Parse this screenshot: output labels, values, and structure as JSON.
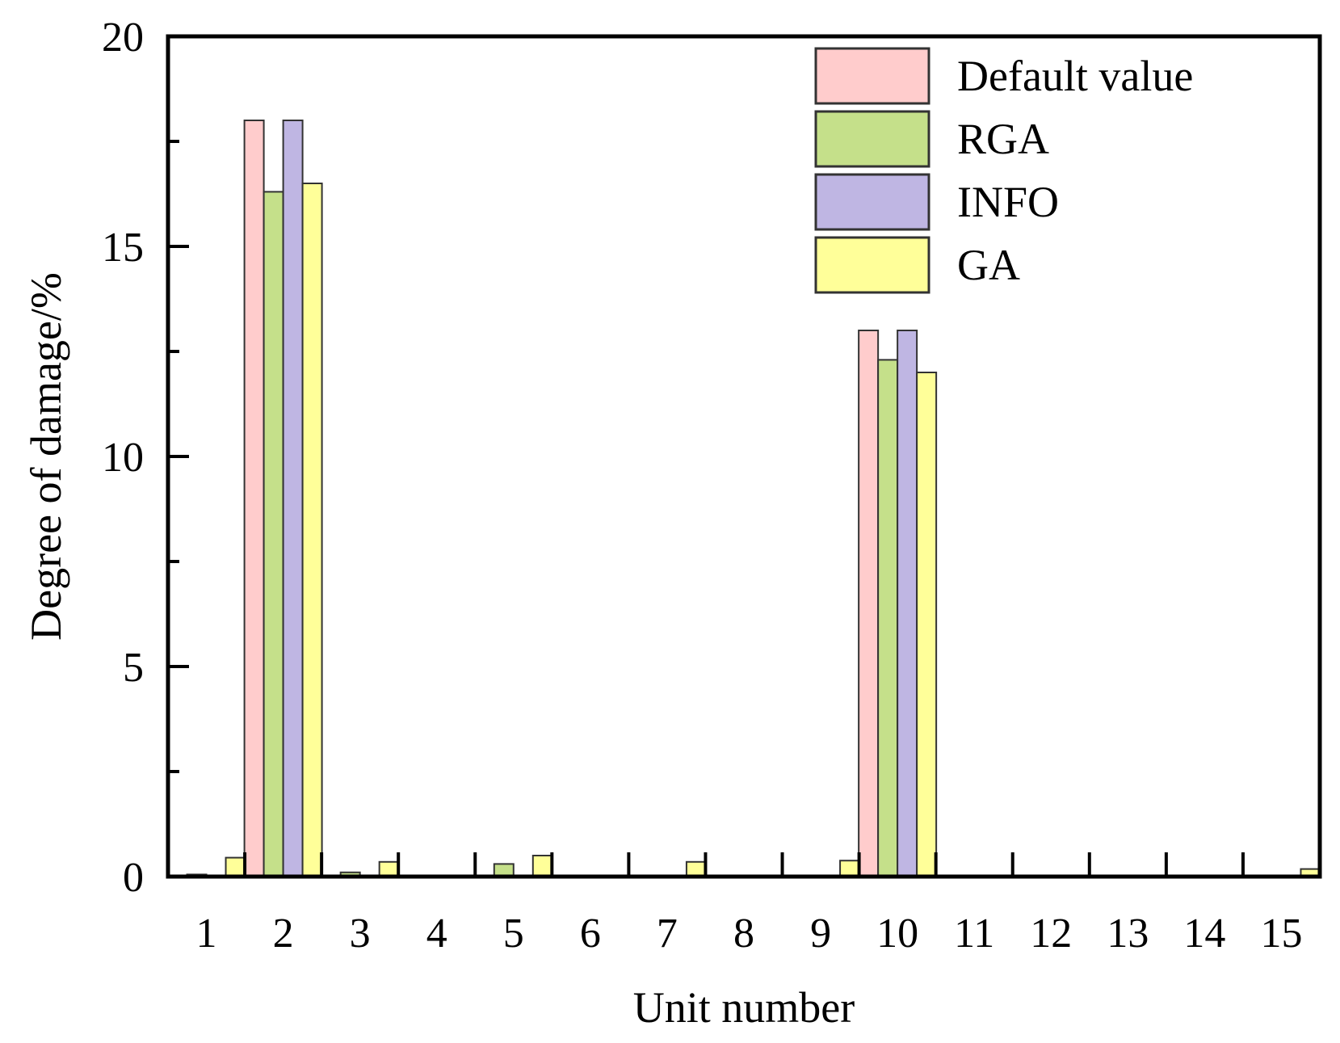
{
  "chart_data": {
    "type": "bar",
    "xlabel": "Unit number",
    "ylabel": "Degree of damage/%",
    "ylim": [
      0,
      20
    ],
    "yticks": [
      0,
      5,
      10,
      15,
      20
    ],
    "categories": [
      "1",
      "2",
      "3",
      "4",
      "5",
      "6",
      "7",
      "8",
      "9",
      "10",
      "11",
      "12",
      "13",
      "14",
      "15"
    ],
    "legend_position": "top-right",
    "grid": false,
    "series": [
      {
        "name": "Default value",
        "color": "#ffcccc",
        "values": [
          0,
          18,
          0,
          0,
          0,
          0,
          0,
          0,
          0,
          13,
          0,
          0,
          0,
          0,
          0
        ]
      },
      {
        "name": "RGA",
        "color": "#c5e08a",
        "values": [
          0.05,
          16.3,
          0.1,
          0.02,
          0.3,
          0,
          0,
          0,
          0,
          12.3,
          0,
          0,
          0,
          0,
          0
        ]
      },
      {
        "name": "INFO",
        "color": "#bfb6e3",
        "values": [
          0,
          18,
          0,
          0,
          0,
          0,
          0,
          0,
          0,
          13,
          0,
          0,
          0,
          0,
          0
        ]
      },
      {
        "name": "GA",
        "color": "#ffff99",
        "values": [
          0.45,
          16.5,
          0.35,
          0.0,
          0.5,
          0,
          0.35,
          0.02,
          0.38,
          12.0,
          0,
          0,
          0,
          0,
          0.18
        ]
      }
    ]
  }
}
